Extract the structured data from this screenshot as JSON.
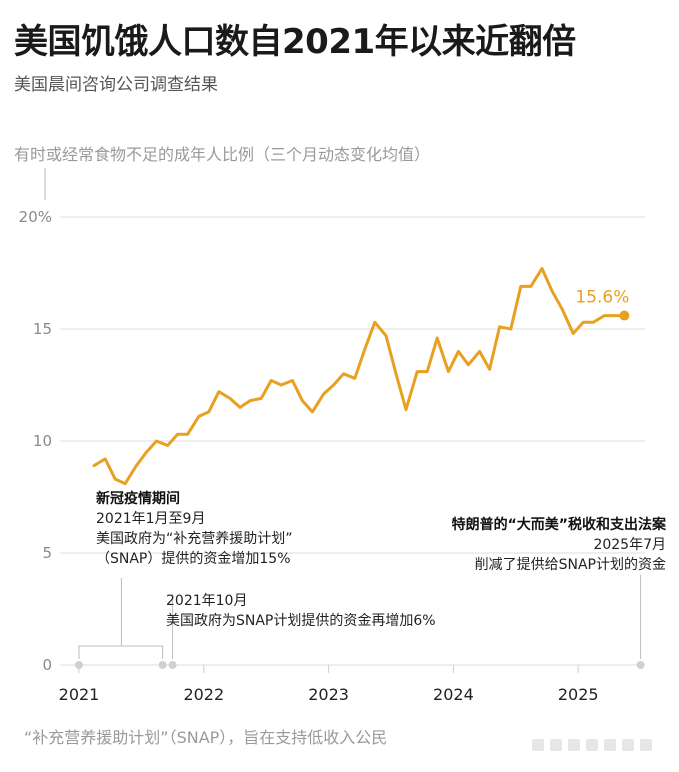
{
  "header": {
    "title": "美国饥饿人口数自2021年以来近翻倍",
    "subtitle": "美国晨间咨询公司调查结果"
  },
  "footer": {
    "note": "“补充营养援助计划”（SNAP），旨在支持低收入公民"
  },
  "colors": {
    "line": "#e8a020",
    "grid": "#dcdcdc",
    "axis": "#cfcfcf"
  },
  "chart_data": {
    "type": "line",
    "title": "有时或经常食物不足的成年人比例（三个月动态变化均值）",
    "ylim": [
      0,
      20
    ],
    "yticks": [
      {
        "value": 20,
        "label": "20%"
      },
      {
        "value": 15,
        "label": "15"
      },
      {
        "value": 10,
        "label": "10"
      },
      {
        "value": 5,
        "label": "5"
      },
      {
        "value": 0,
        "label": "0"
      }
    ],
    "xlim": [
      2021.0,
      2025.8
    ],
    "xticks": [
      {
        "value": 2021,
        "label": "2021"
      },
      {
        "value": 2022,
        "label": "2022"
      },
      {
        "value": 2023,
        "label": "2023"
      },
      {
        "value": 2024,
        "label": "2024"
      },
      {
        "value": 2025,
        "label": "2025"
      }
    ],
    "grid": true,
    "series": [
      {
        "x": [
          2021.12,
          2021.21,
          2021.29,
          2021.37,
          2021.46,
          2021.54,
          2021.62,
          2021.71,
          2021.79,
          2021.87,
          2021.96,
          2022.04,
          2022.12,
          2022.21,
          2022.29,
          2022.37,
          2022.46,
          2022.54,
          2022.62,
          2022.71,
          2022.79,
          2022.87,
          2022.96,
          2023.04,
          2023.12,
          2023.21,
          2023.29,
          2023.37,
          2023.46,
          2023.54,
          2023.62,
          2023.71,
          2023.79,
          2023.87,
          2023.96,
          2024.04,
          2024.12,
          2024.21,
          2024.29,
          2024.37,
          2024.46,
          2024.54,
          2024.62,
          2024.71,
          2024.79,
          2024.87,
          2024.96,
          2025.04,
          2025.12,
          2025.21,
          2025.29,
          2025.37
        ],
        "values": [
          8.9,
          9.2,
          8.3,
          8.1,
          8.9,
          9.5,
          10.0,
          9.8,
          10.3,
          10.3,
          11.1,
          11.3,
          12.2,
          11.9,
          11.5,
          11.8,
          11.9,
          12.7,
          12.5,
          12.7,
          11.8,
          11.3,
          12.1,
          12.5,
          13.0,
          12.8,
          14.1,
          15.3,
          14.7,
          13.0,
          11.4,
          13.1,
          13.1,
          14.6,
          13.1,
          14.0,
          13.4,
          14.0,
          13.2,
          15.1,
          15.0,
          16.9,
          16.9,
          17.7,
          16.7,
          15.9,
          14.8,
          15.3,
          15.3,
          15.6,
          15.6,
          15.6
        ]
      }
    ],
    "end_label": "15.6%",
    "annotations": [
      {
        "id": "a1",
        "lines": [
          "新冠疫情期间",
          "2021年1月至9月",
          "美国政府为“补充营养援助计划”",
          "（SNAP）提供的资金增加15%"
        ],
        "start": 2021.0,
        "end": 2021.67
      },
      {
        "id": "a2",
        "lines": [
          "2021年10月",
          "美国政府为SNAP计划提供的资金再增加6%"
        ],
        "start": 2021.75
      },
      {
        "id": "a3",
        "lines": [
          "特朗普的“大而美”税收和支出法案",
          "2025年7月",
          "削减了提供给SNAP计划的资金"
        ],
        "start": 2025.5
      }
    ]
  }
}
